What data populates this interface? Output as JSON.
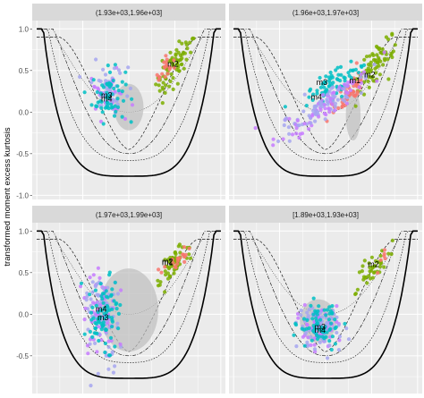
{
  "chart_data": {
    "type": "scatter",
    "ylabel": "transformed moment excess kurtosis",
    "xlabel": "",
    "y_ticks": [
      1.0,
      0.5,
      0.0,
      -0.5,
      -1.0
    ],
    "y_tick_labels": [
      "1.0",
      "0.5",
      "0.0",
      "-0.5",
      "-1.0"
    ],
    "ylim": [
      -1.05,
      1.1
    ],
    "xlim": [
      -1.05,
      1.05
    ],
    "grid": true,
    "legend": "none",
    "colors": {
      "panel_bg": "#ebebeb",
      "strip_bg": "#d9d9d9",
      "grid": "#ffffff",
      "m1": "#f8766d",
      "m2": "#7cae00",
      "m3": "#00bfc4",
      "m4": "#c77cff",
      "m4_light": "#a6a6f0",
      "ellipse": "#bdbdbd"
    },
    "panels": [
      {
        "strip": "(1.93e+03,1.96e+03]",
        "labels": [
          {
            "text": "m2",
            "x": 0.48,
            "y": 0.58
          },
          {
            "text": "m3",
            "x": -0.24,
            "y": 0.2
          },
          {
            "text": "m4",
            "x": -0.24,
            "y": 0.16
          }
        ],
        "clusters": [
          {
            "group": "m2",
            "cx": 0.5,
            "cy": 0.55,
            "sx": 0.09,
            "sy": 0.16,
            "n": 70,
            "slope": 1.2
          },
          {
            "group": "m1",
            "cx": 0.38,
            "cy": 0.5,
            "sx": 0.06,
            "sy": 0.08,
            "n": 20,
            "slope": 1.0
          },
          {
            "group": "m4",
            "cx": -0.22,
            "cy": 0.25,
            "sx": 0.09,
            "sy": 0.15,
            "n": 80,
            "slope": 0
          },
          {
            "group": "m3",
            "cx": -0.22,
            "cy": 0.2,
            "sx": 0.09,
            "sy": 0.16,
            "n": 60,
            "slope": 0
          }
        ],
        "ellipse": {
          "cx": 0.0,
          "cy": 0.06,
          "rx": 0.16,
          "ry": 0.28
        }
      },
      {
        "strip": "(1.96e+03,1.97e+03]",
        "labels": [
          {
            "text": "m2",
            "x": 0.48,
            "y": 0.45
          },
          {
            "text": "m1",
            "x": 0.32,
            "y": 0.38
          },
          {
            "text": "m3",
            "x": -0.04,
            "y": 0.36
          },
          {
            "text": "m4",
            "x": -0.1,
            "y": 0.18
          }
        ],
        "clusters": [
          {
            "group": "m2",
            "cx": 0.55,
            "cy": 0.58,
            "sx": 0.1,
            "sy": 0.13,
            "n": 70,
            "slope": 1.1
          },
          {
            "group": "m1",
            "cx": 0.26,
            "cy": 0.22,
            "sx": 0.09,
            "sy": 0.12,
            "n": 50,
            "slope": 1.0
          },
          {
            "group": "m3",
            "cx": 0.05,
            "cy": 0.3,
            "sx": 0.16,
            "sy": 0.12,
            "n": 70,
            "slope": 0.5
          },
          {
            "group": "m4",
            "cx": -0.03,
            "cy": 0.08,
            "sx": 0.14,
            "sy": 0.2,
            "n": 140,
            "slope": 0.3
          }
        ],
        "ellipse": {
          "cx": 0.3,
          "cy": -0.04,
          "rx": 0.08,
          "ry": 0.3
        }
      },
      {
        "strip": "(1.97e+03,1.99e+03]",
        "labels": [
          {
            "text": "m2",
            "x": 0.42,
            "y": 0.63
          },
          {
            "text": "m1",
            "x": 0.42,
            "y": 0.62
          },
          {
            "text": "m4",
            "x": -0.3,
            "y": 0.06
          },
          {
            "text": "m3",
            "x": -0.28,
            "y": -0.04
          }
        ],
        "clusters": [
          {
            "group": "m2",
            "cx": 0.5,
            "cy": 0.62,
            "sx": 0.09,
            "sy": 0.12,
            "n": 60,
            "slope": 1.1
          },
          {
            "group": "m1",
            "cx": 0.52,
            "cy": 0.64,
            "sx": 0.07,
            "sy": 0.08,
            "n": 20,
            "slope": 1.0
          },
          {
            "group": "m4",
            "cx": -0.3,
            "cy": 0.02,
            "sx": 0.1,
            "sy": 0.26,
            "n": 130,
            "slope": 0
          },
          {
            "group": "m3",
            "cx": -0.28,
            "cy": 0.0,
            "sx": 0.09,
            "sy": 0.22,
            "n": 80,
            "slope": 0
          }
        ],
        "ellipse": {
          "cx": 0.0,
          "cy": 0.05,
          "rx": 0.32,
          "ry": 0.5
        }
      },
      {
        "strip": "[1.89e+03,1.93e+03]",
        "labels": [
          {
            "text": "m2",
            "x": 0.52,
            "y": 0.6
          },
          {
            "text": "m3",
            "x": -0.06,
            "y": -0.15
          },
          {
            "text": "m4",
            "x": -0.06,
            "y": -0.19
          }
        ],
        "clusters": [
          {
            "group": "m2",
            "cx": 0.52,
            "cy": 0.55,
            "sx": 0.08,
            "sy": 0.12,
            "n": 40,
            "slope": 1.0
          },
          {
            "group": "m1",
            "cx": 0.6,
            "cy": 0.64,
            "sx": 0.04,
            "sy": 0.05,
            "n": 6,
            "slope": 1.0
          },
          {
            "group": "m4",
            "cx": -0.06,
            "cy": -0.16,
            "sx": 0.12,
            "sy": 0.13,
            "n": 120,
            "slope": 0
          },
          {
            "group": "m3",
            "cx": -0.06,
            "cy": -0.14,
            "sx": 0.12,
            "sy": 0.12,
            "n": 70,
            "slope": 0
          }
        ],
        "ellipse": {
          "cx": -0.08,
          "cy": -0.08,
          "rx": 0.2,
          "ry": 0.26
        }
      }
    ]
  }
}
